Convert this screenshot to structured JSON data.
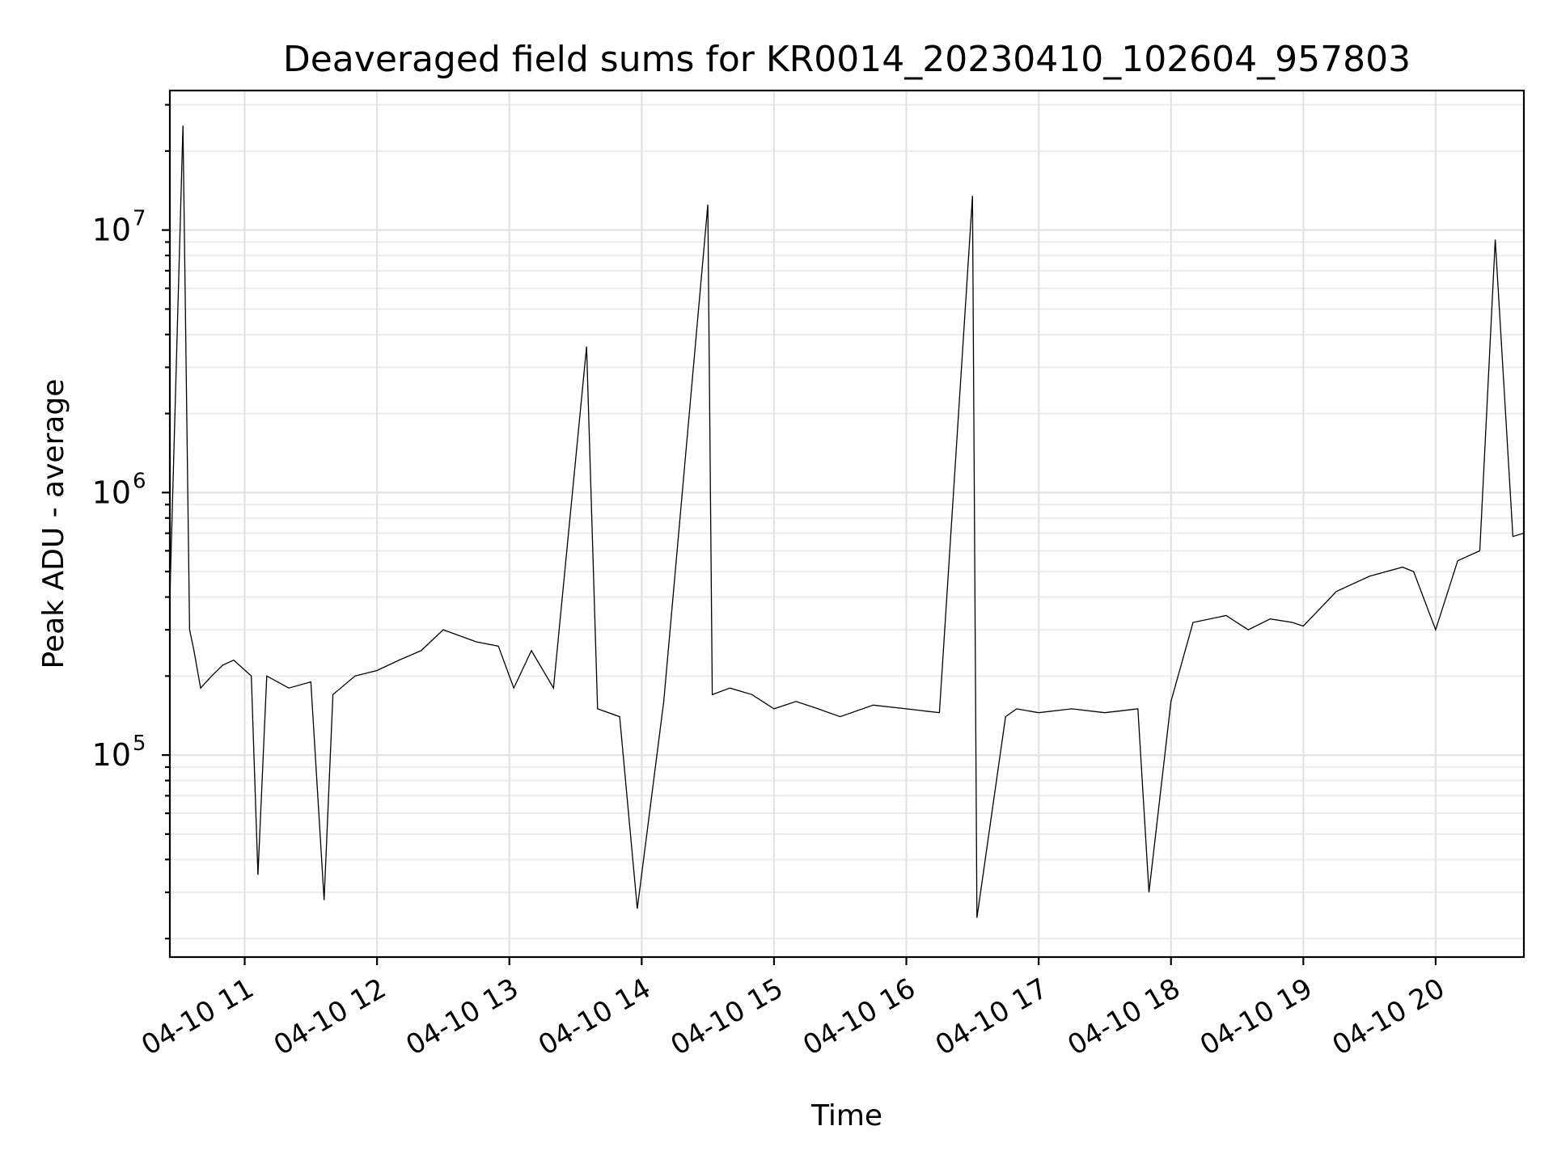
{
  "chart_data": {
    "type": "line",
    "title": "Deaveraged field sums for KR0014_20230410_102604_957803",
    "xlabel": "Time",
    "ylabel": "Peak ADU - average",
    "yscale": "log",
    "grid": true,
    "line_color": "#000000",
    "xlim": [
      "2023-04-10T10:26:04",
      "2023-04-10T20:40:00"
    ],
    "ylim": [
      17000,
      34000000
    ],
    "xticks": [
      {
        "value": "2023-04-10T11:00:00",
        "label": "04-10 11"
      },
      {
        "value": "2023-04-10T12:00:00",
        "label": "04-10 12"
      },
      {
        "value": "2023-04-10T13:00:00",
        "label": "04-10 13"
      },
      {
        "value": "2023-04-10T14:00:00",
        "label": "04-10 14"
      },
      {
        "value": "2023-04-10T15:00:00",
        "label": "04-10 15"
      },
      {
        "value": "2023-04-10T16:00:00",
        "label": "04-10 16"
      },
      {
        "value": "2023-04-10T17:00:00",
        "label": "04-10 17"
      },
      {
        "value": "2023-04-10T18:00:00",
        "label": "04-10 18"
      },
      {
        "value": "2023-04-10T19:00:00",
        "label": "04-10 19"
      },
      {
        "value": "2023-04-10T20:00:00",
        "label": "04-10 20"
      }
    ],
    "yticks": [
      {
        "value": 100000,
        "base": "10",
        "exp": "5"
      },
      {
        "value": 1000000,
        "base": "10",
        "exp": "6"
      },
      {
        "value": 10000000,
        "base": "10",
        "exp": "7"
      }
    ],
    "series": [
      {
        "x": [
          "2023-04-10T10:26:04",
          "2023-04-10T10:32:00",
          "2023-04-10T10:35:00",
          "2023-04-10T10:37:00",
          "2023-04-10T10:40:00",
          "2023-04-10T10:45:00",
          "2023-04-10T10:50:00",
          "2023-04-10T10:55:00",
          "2023-04-10T11:03:00",
          "2023-04-10T11:06:00",
          "2023-04-10T11:10:00",
          "2023-04-10T11:20:00",
          "2023-04-10T11:30:00",
          "2023-04-10T11:36:00",
          "2023-04-10T11:40:00",
          "2023-04-10T11:50:00",
          "2023-04-10T12:00:00",
          "2023-04-10T12:10:00",
          "2023-04-10T12:20:00",
          "2023-04-10T12:30:00",
          "2023-04-10T12:45:00",
          "2023-04-10T12:55:00",
          "2023-04-10T13:02:00",
          "2023-04-10T13:10:00",
          "2023-04-10T13:20:00",
          "2023-04-10T13:35:00",
          "2023-04-10T13:40:00",
          "2023-04-10T13:50:00",
          "2023-04-10T13:58:00",
          "2023-04-10T14:10:00",
          "2023-04-10T14:30:00",
          "2023-04-10T14:32:00",
          "2023-04-10T14:40:00",
          "2023-04-10T14:50:00",
          "2023-04-10T15:00:00",
          "2023-04-10T15:10:00",
          "2023-04-10T15:20:00",
          "2023-04-10T15:30:00",
          "2023-04-10T15:45:00",
          "2023-04-10T16:00:00",
          "2023-04-10T16:15:00",
          "2023-04-10T16:30:00",
          "2023-04-10T16:32:00",
          "2023-04-10T16:45:00",
          "2023-04-10T16:50:00",
          "2023-04-10T17:00:00",
          "2023-04-10T17:15:00",
          "2023-04-10T17:30:00",
          "2023-04-10T17:45:00",
          "2023-04-10T17:50:00",
          "2023-04-10T18:00:00",
          "2023-04-10T18:10:00",
          "2023-04-10T18:25:00",
          "2023-04-10T18:35:00",
          "2023-04-10T18:45:00",
          "2023-04-10T18:55:00",
          "2023-04-10T19:00:00",
          "2023-04-10T19:15:00",
          "2023-04-10T19:30:00",
          "2023-04-10T19:45:00",
          "2023-04-10T19:50:00",
          "2023-04-10T20:00:00",
          "2023-04-10T20:10:00",
          "2023-04-10T20:20:00",
          "2023-04-10T20:27:00",
          "2023-04-10T20:35:00",
          "2023-04-10T20:40:00"
        ],
        "y": [
          400000,
          25000000,
          300000,
          250000,
          180000,
          200000,
          220000,
          230000,
          200000,
          35000,
          200000,
          180000,
          190000,
          28000,
          170000,
          200000,
          210000,
          230000,
          250000,
          300000,
          270000,
          260000,
          180000,
          250000,
          180000,
          3600000,
          150000,
          140000,
          26000,
          160000,
          12500000,
          170000,
          180000,
          170000,
          150000,
          160000,
          150000,
          140000,
          155000,
          150000,
          145000,
          13500000,
          24000,
          140000,
          150000,
          145000,
          150000,
          145000,
          150000,
          30000,
          160000,
          320000,
          340000,
          300000,
          330000,
          320000,
          310000,
          420000,
          480000,
          520000,
          500000,
          300000,
          550000,
          600000,
          9200000,
          680000,
          700000
        ]
      }
    ]
  }
}
